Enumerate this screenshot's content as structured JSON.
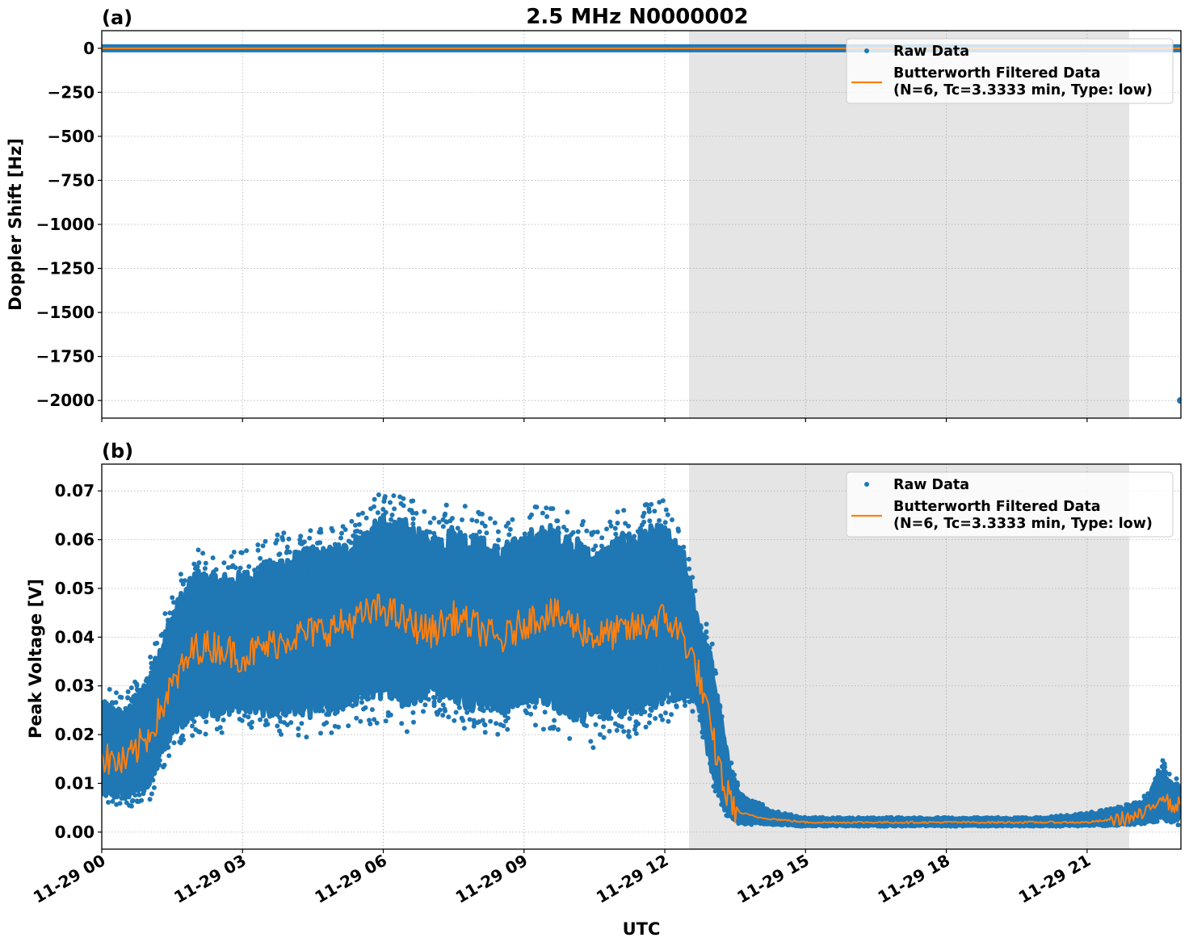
{
  "figure": {
    "title": "2.5 MHz N0000002",
    "xlabel": "UTC"
  },
  "colors": {
    "raw": "#1f77b4",
    "filtered": "#ff7f0e",
    "shade": "#e5e5e5",
    "grid": "#b0b0b0"
  },
  "legend": {
    "raw_label": "Raw Data",
    "filtered_label_line1": "Butterworth Filtered Data",
    "filtered_label_line2": "(N=6, Tc=3.3333 min, Type: low)"
  },
  "panels": [
    {
      "label": "(a)",
      "ylabel": "Doppler Shift [Hz]",
      "yticks": [
        "0",
        "−250",
        "−500",
        "−750",
        "−1000",
        "−1250",
        "−1500",
        "−1750",
        "−2000"
      ]
    },
    {
      "label": "(b)",
      "ylabel": "Peak Voltage [V]",
      "yticks": [
        "0.07",
        "0.06",
        "0.05",
        "0.04",
        "0.03",
        "0.02",
        "0.01",
        "0.00"
      ]
    }
  ],
  "xticks": [
    "11-29 00",
    "11-29 03",
    "11-29 06",
    "11-29 09",
    "11-29 12",
    "11-29 15",
    "11-29 18",
    "11-29 21"
  ],
  "chart_data": [
    {
      "type": "scatter",
      "panel": "(a)",
      "title": "2.5 MHz N0000002",
      "xlabel": "UTC",
      "ylabel": "Doppler Shift [Hz]",
      "xlim_hours": [
        0,
        23
      ],
      "ylim": [
        -2100,
        100
      ],
      "grid": true,
      "legend_position": "upper right",
      "shaded_region_hours": [
        12.55,
        22.0
      ],
      "x_hours": [
        0,
        3,
        6,
        9,
        12,
        15,
        18,
        21,
        23
      ],
      "series": [
        {
          "name": "Raw Data",
          "values": [
            0,
            0,
            0,
            0,
            0,
            0,
            0,
            0,
            -2000
          ]
        },
        {
          "name": "Butterworth Filtered Data (N=6, Tc=3.3333 min, Type: low)",
          "values": [
            0,
            0,
            0,
            0,
            0,
            0,
            0,
            0,
            0
          ]
        }
      ]
    },
    {
      "type": "scatter",
      "panel": "(b)",
      "xlabel": "UTC",
      "ylabel": "Peak Voltage [V]",
      "xlim_hours": [
        0,
        23
      ],
      "ylim": [
        -0.0035,
        0.0755
      ],
      "grid": true,
      "legend_position": "upper right",
      "shaded_region_hours": [
        12.55,
        22.0
      ],
      "x_hours": [
        0,
        0.5,
        1.0,
        1.5,
        2.0,
        2.5,
        3.0,
        3.5,
        4.0,
        4.5,
        5.0,
        5.5,
        6.0,
        6.5,
        7.0,
        7.5,
        8.0,
        8.5,
        9.0,
        9.5,
        10.0,
        10.5,
        11.0,
        11.5,
        12.0,
        12.4,
        12.7,
        13.0,
        13.3,
        13.6,
        14.0,
        14.5,
        15.0,
        16.0,
        17.0,
        18.0,
        19.0,
        20.0,
        21.0,
        21.5,
        22.0,
        22.3,
        22.6,
        22.8,
        23.0
      ],
      "series": [
        {
          "name": "Raw Data (upper envelope)",
          "values": [
            0.03,
            0.028,
            0.035,
            0.05,
            0.058,
            0.057,
            0.058,
            0.06,
            0.062,
            0.063,
            0.063,
            0.066,
            0.07,
            0.069,
            0.066,
            0.068,
            0.066,
            0.064,
            0.066,
            0.068,
            0.066,
            0.062,
            0.066,
            0.068,
            0.068,
            0.062,
            0.048,
            0.04,
            0.02,
            0.008,
            0.006,
            0.004,
            0.003,
            0.003,
            0.003,
            0.003,
            0.003,
            0.003,
            0.004,
            0.005,
            0.006,
            0.008,
            0.015,
            0.011,
            0.011
          ]
        },
        {
          "name": "Raw Data (lower envelope)",
          "values": [
            0.006,
            0.005,
            0.006,
            0.017,
            0.02,
            0.02,
            0.022,
            0.02,
            0.02,
            0.019,
            0.02,
            0.022,
            0.022,
            0.02,
            0.025,
            0.022,
            0.02,
            0.02,
            0.022,
            0.02,
            0.018,
            0.017,
            0.019,
            0.02,
            0.022,
            0.024,
            0.025,
            0.01,
            0.003,
            0.0015,
            0.0015,
            0.0012,
            0.0012,
            0.0012,
            0.0012,
            0.0012,
            0.0012,
            0.0012,
            0.0012,
            0.0013,
            0.0015,
            0.0018,
            0.002,
            0.002,
            0.001
          ]
        },
        {
          "name": "Butterworth Filtered Data",
          "values": [
            0.015,
            0.014,
            0.02,
            0.03,
            0.038,
            0.038,
            0.036,
            0.038,
            0.04,
            0.041,
            0.042,
            0.044,
            0.046,
            0.043,
            0.041,
            0.044,
            0.042,
            0.039,
            0.043,
            0.045,
            0.043,
            0.04,
            0.041,
            0.042,
            0.044,
            0.04,
            0.033,
            0.02,
            0.008,
            0.004,
            0.003,
            0.0025,
            0.002,
            0.002,
            0.002,
            0.002,
            0.002,
            0.002,
            0.002,
            0.0025,
            0.003,
            0.004,
            0.008,
            0.005,
            0.006
          ]
        }
      ]
    }
  ]
}
